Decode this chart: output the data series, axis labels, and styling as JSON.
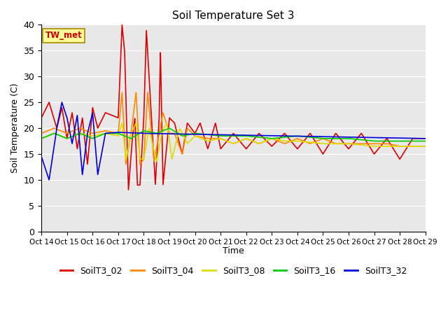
{
  "title": "Soil Temperature Set 3",
  "xlabel": "Time",
  "ylabel": "Soil Temperature (C)",
  "ylim": [
    0,
    40
  ],
  "xlim": [
    0,
    15
  ],
  "xtick_labels": [
    "Oct 14",
    "Oct 15",
    "Oct 16",
    "Oct 17",
    "Oct 18",
    "Oct 19",
    "Oct 20",
    "Oct 21",
    "Oct 22",
    "Oct 23",
    "Oct 24",
    "Oct 25",
    "Oct 26",
    "Oct 27",
    "Oct 28",
    "Oct 29"
  ],
  "ytick_values": [
    0,
    5,
    10,
    15,
    20,
    25,
    30,
    35,
    40
  ],
  "annotation_text": "TW_met",
  "annotation_color": "#cc0000",
  "annotation_bg": "#ffff99",
  "bg_color": "#e8e8e8",
  "series_colors": {
    "SoilT3_02": "#dd0000",
    "SoilT3_04": "#ff8800",
    "SoilT3_08": "#dddd00",
    "SoilT3_16": "#00cc00",
    "SoilT3_32": "#0000dd"
  },
  "line_width": 1.2
}
